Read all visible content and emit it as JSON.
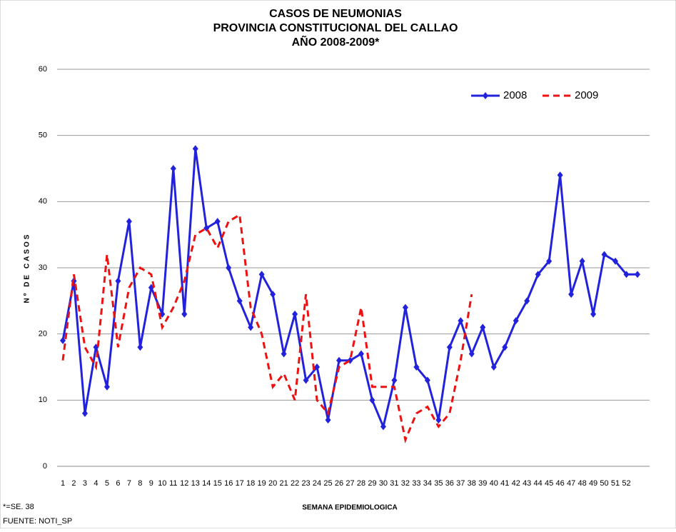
{
  "chart_data": {
    "type": "line",
    "title": [
      "CASOS DE NEUMONIAS",
      "PROVINCIA CONSTITUCIONAL DEL CALLAO",
      "AÑO 2008-2009*"
    ],
    "y_label": "Nº DE CASOS",
    "x_label": "SEMANA EPIDEMIOLOGICA",
    "footnotes": [
      "*=SE. 38",
      "FUENTE: NOTI_SP"
    ],
    "categories": [
      "1",
      "2",
      "3",
      "4",
      "5",
      "6",
      "7",
      "8",
      "9",
      "10",
      "11",
      "12",
      "13",
      "14",
      "15",
      "16",
      "17",
      "18",
      "19",
      "20",
      "21",
      "22",
      "23",
      "24",
      "25",
      "26",
      "27",
      "28",
      "29",
      "30",
      "31",
      "32",
      "33",
      "34",
      "35",
      "36",
      "37",
      "38",
      "39",
      "40",
      "41",
      "42",
      "43",
      "44",
      "45",
      "46",
      "47",
      "48",
      "49",
      "50",
      "51",
      "52",
      null
    ],
    "series": [
      {
        "name": "2008",
        "color": "#2222dd",
        "dash": false,
        "marker": true,
        "values": [
          19,
          28,
          8,
          18,
          12,
          28,
          37,
          18,
          27,
          23,
          45,
          23,
          48,
          36,
          37,
          30,
          25,
          21,
          29,
          26,
          17,
          23,
          13,
          15,
          7,
          16,
          16,
          17,
          10,
          6,
          13,
          24,
          15,
          13,
          7,
          18,
          22,
          17,
          21,
          15,
          18,
          22,
          25,
          29,
          31,
          44,
          26,
          31,
          23,
          32,
          31,
          29,
          29
        ]
      },
      {
        "name": "2009",
        "color": "#ee1111",
        "dash": true,
        "marker": false,
        "values": [
          16,
          29,
          18,
          15,
          32,
          18,
          27,
          30,
          29,
          21,
          24,
          28,
          35,
          36,
          33,
          37,
          38,
          24,
          20,
          12,
          14,
          10,
          26,
          10,
          8,
          15,
          16,
          24,
          12,
          12,
          12,
          4,
          8,
          9,
          6,
          8,
          16,
          26,
          null,
          null,
          null,
          null,
          null,
          null,
          null,
          null,
          null,
          null,
          null,
          null,
          null,
          null,
          null
        ]
      }
    ],
    "ylim": [
      0,
      60
    ],
    "yticks": [
      0,
      10,
      20,
      30,
      40,
      50,
      60
    ],
    "grid": true,
    "legend": "top-right"
  }
}
